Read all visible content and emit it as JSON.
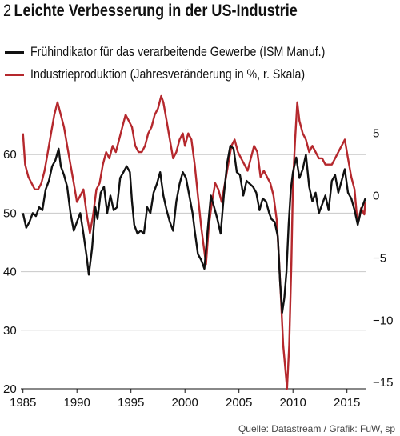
{
  "header": {
    "number": "2",
    "title": "Leichte Verbesserung in der US-Industrie"
  },
  "legend": [
    {
      "label": "Frühindikator für das verarbeitende Gewerbe (ISM Manuf.)",
      "color": "#111111"
    },
    {
      "label": "Industrieproduktion (Jahresveränderung in %, r. Skala)",
      "color": "#b5282d"
    }
  ],
  "source": "Quelle: Datastream / Grafik: FuW, sp",
  "chart_data": {
    "type": "line",
    "x_ticks": [
      "1985",
      "1990",
      "1995",
      "2000",
      "2005",
      "2010",
      "2015"
    ],
    "xlim": [
      1984.8,
      2016.8
    ],
    "y_left": {
      "ticks": [
        "20",
        "30",
        "40",
        "50",
        "60"
      ],
      "lim": [
        20,
        70
      ]
    },
    "y_right": {
      "ticks": [
        "−15",
        "−10",
        "−5",
        "0",
        "5"
      ],
      "lim": [
        -15.5,
        8
      ]
    },
    "grid": "horizontal",
    "series": [
      {
        "name": "Frühindikator für das verarbeitende Gewerbe (ISM Manuf.)",
        "axis": "left",
        "color": "#111111",
        "points": [
          [
            1985.0,
            50.0
          ],
          [
            1985.3,
            47.5
          ],
          [
            1985.6,
            48.5
          ],
          [
            1985.9,
            50.0
          ],
          [
            1986.2,
            49.5
          ],
          [
            1986.5,
            51.0
          ],
          [
            1986.8,
            50.5
          ],
          [
            1987.1,
            54.0
          ],
          [
            1987.4,
            55.5
          ],
          [
            1987.7,
            58.0
          ],
          [
            1988.0,
            59.0
          ],
          [
            1988.3,
            61.0
          ],
          [
            1988.5,
            58.0
          ],
          [
            1988.8,
            56.5
          ],
          [
            1989.1,
            54.5
          ],
          [
            1989.4,
            50.0
          ],
          [
            1989.7,
            47.0
          ],
          [
            1990.0,
            48.5
          ],
          [
            1990.3,
            50.0
          ],
          [
            1990.6,
            46.5
          ],
          [
            1990.9,
            42.5
          ],
          [
            1991.1,
            39.5
          ],
          [
            1991.4,
            44.0
          ],
          [
            1991.7,
            51.0
          ],
          [
            1991.9,
            49.0
          ],
          [
            1992.2,
            53.5
          ],
          [
            1992.5,
            54.5
          ],
          [
            1992.8,
            50.0
          ],
          [
            1993.1,
            53.0
          ],
          [
            1993.4,
            50.5
          ],
          [
            1993.7,
            51.0
          ],
          [
            1994.0,
            56.0
          ],
          [
            1994.3,
            57.0
          ],
          [
            1994.6,
            58.0
          ],
          [
            1994.9,
            57.0
          ],
          [
            1995.1,
            52.0
          ],
          [
            1995.3,
            48.0
          ],
          [
            1995.6,
            46.5
          ],
          [
            1995.9,
            47.0
          ],
          [
            1996.2,
            46.5
          ],
          [
            1996.5,
            51.0
          ],
          [
            1996.8,
            50.0
          ],
          [
            1997.1,
            53.5
          ],
          [
            1997.4,
            55.0
          ],
          [
            1997.7,
            57.0
          ],
          [
            1998.0,
            53.0
          ],
          [
            1998.3,
            50.5
          ],
          [
            1998.6,
            48.5
          ],
          [
            1998.9,
            47.0
          ],
          [
            1999.2,
            52.0
          ],
          [
            1999.5,
            55.0
          ],
          [
            1999.8,
            57.0
          ],
          [
            2000.1,
            56.0
          ],
          [
            2000.4,
            53.0
          ],
          [
            2000.7,
            50.0
          ],
          [
            2000.9,
            47.0
          ],
          [
            2001.2,
            43.0
          ],
          [
            2001.5,
            42.0
          ],
          [
            2001.8,
            40.5
          ],
          [
            2002.1,
            47.0
          ],
          [
            2002.4,
            53.0
          ],
          [
            2002.7,
            51.0
          ],
          [
            2003.0,
            49.0
          ],
          [
            2003.3,
            46.5
          ],
          [
            2003.6,
            53.0
          ],
          [
            2003.9,
            58.5
          ],
          [
            2004.2,
            61.5
          ],
          [
            2004.5,
            61.0
          ],
          [
            2004.8,
            57.0
          ],
          [
            2005.1,
            56.5
          ],
          [
            2005.4,
            53.0
          ],
          [
            2005.7,
            55.5
          ],
          [
            2006.0,
            55.0
          ],
          [
            2006.3,
            54.5
          ],
          [
            2006.6,
            53.5
          ],
          [
            2006.9,
            50.5
          ],
          [
            2007.2,
            52.5
          ],
          [
            2007.5,
            52.0
          ],
          [
            2007.8,
            50.0
          ],
          [
            2008.0,
            49.0
          ],
          [
            2008.3,
            48.5
          ],
          [
            2008.6,
            46.0
          ],
          [
            2008.8,
            38.5
          ],
          [
            2009.0,
            33.0
          ],
          [
            2009.2,
            35.5
          ],
          [
            2009.4,
            40.0
          ],
          [
            2009.6,
            48.0
          ],
          [
            2009.8,
            54.0
          ],
          [
            2010.0,
            57.0
          ],
          [
            2010.3,
            59.5
          ],
          [
            2010.6,
            56.0
          ],
          [
            2010.9,
            57.5
          ],
          [
            2011.2,
            60.0
          ],
          [
            2011.5,
            54.5
          ],
          [
            2011.8,
            52.0
          ],
          [
            2012.1,
            53.5
          ],
          [
            2012.4,
            50.0
          ],
          [
            2012.7,
            51.5
          ],
          [
            2013.0,
            53.0
          ],
          [
            2013.3,
            50.5
          ],
          [
            2013.6,
            55.5
          ],
          [
            2013.9,
            56.5
          ],
          [
            2014.2,
            53.5
          ],
          [
            2014.5,
            55.5
          ],
          [
            2014.8,
            57.5
          ],
          [
            2015.1,
            53.5
          ],
          [
            2015.4,
            52.5
          ],
          [
            2015.7,
            50.5
          ],
          [
            2016.0,
            48.0
          ],
          [
            2016.3,
            50.5
          ],
          [
            2016.5,
            51.5
          ],
          [
            2016.7,
            52.5
          ]
        ]
      },
      {
        "name": "Industrieproduktion (Jahresveränderung in %, r. Skala)",
        "axis": "right",
        "color": "#b5282d",
        "points": [
          [
            1985.0,
            5.0
          ],
          [
            1985.2,
            2.5
          ],
          [
            1985.5,
            1.5
          ],
          [
            1985.8,
            1.0
          ],
          [
            1986.1,
            0.5
          ],
          [
            1986.4,
            0.5
          ],
          [
            1986.7,
            1.0
          ],
          [
            1987.0,
            2.0
          ],
          [
            1987.3,
            3.5
          ],
          [
            1987.6,
            5.0
          ],
          [
            1987.9,
            6.5
          ],
          [
            1988.2,
            7.5
          ],
          [
            1988.5,
            6.5
          ],
          [
            1988.8,
            5.5
          ],
          [
            1989.1,
            4.0
          ],
          [
            1989.4,
            2.5
          ],
          [
            1989.7,
            1.0
          ],
          [
            1990.0,
            -0.5
          ],
          [
            1990.3,
            0.0
          ],
          [
            1990.6,
            0.5
          ],
          [
            1990.9,
            -1.5
          ],
          [
            1991.2,
            -3.0
          ],
          [
            1991.5,
            -1.5
          ],
          [
            1991.8,
            0.5
          ],
          [
            1992.1,
            1.0
          ],
          [
            1992.4,
            2.5
          ],
          [
            1992.7,
            3.5
          ],
          [
            1993.0,
            3.0
          ],
          [
            1993.3,
            4.0
          ],
          [
            1993.6,
            3.5
          ],
          [
            1993.9,
            4.5
          ],
          [
            1994.2,
            5.5
          ],
          [
            1994.5,
            6.5
          ],
          [
            1994.8,
            6.0
          ],
          [
            1995.1,
            5.5
          ],
          [
            1995.4,
            4.0
          ],
          [
            1995.7,
            3.5
          ],
          [
            1996.0,
            3.5
          ],
          [
            1996.3,
            4.0
          ],
          [
            1996.6,
            5.0
          ],
          [
            1996.9,
            5.5
          ],
          [
            1997.2,
            6.5
          ],
          [
            1997.5,
            7.0
          ],
          [
            1997.8,
            8.0
          ],
          [
            1998.0,
            7.5
          ],
          [
            1998.3,
            6.0
          ],
          [
            1998.6,
            4.5
          ],
          [
            1998.9,
            3.0
          ],
          [
            1999.2,
            3.5
          ],
          [
            1999.5,
            4.5
          ],
          [
            1999.8,
            5.0
          ],
          [
            2000.0,
            4.0
          ],
          [
            2000.3,
            5.0
          ],
          [
            2000.6,
            4.5
          ],
          [
            2000.9,
            2.5
          ],
          [
            2001.2,
            0.0
          ],
          [
            2001.5,
            -2.5
          ],
          [
            2001.8,
            -4.5
          ],
          [
            2001.95,
            -5.5
          ],
          [
            2002.2,
            -2.5
          ],
          [
            2002.5,
            -0.5
          ],
          [
            2002.8,
            1.0
          ],
          [
            2003.1,
            0.5
          ],
          [
            2003.4,
            -0.5
          ],
          [
            2003.7,
            1.0
          ],
          [
            2004.0,
            2.5
          ],
          [
            2004.3,
            4.0
          ],
          [
            2004.6,
            4.5
          ],
          [
            2004.9,
            3.5
          ],
          [
            2005.2,
            3.0
          ],
          [
            2005.5,
            2.5
          ],
          [
            2005.8,
            2.0
          ],
          [
            2006.1,
            3.0
          ],
          [
            2006.4,
            4.0
          ],
          [
            2006.7,
            3.5
          ],
          [
            2007.0,
            1.5
          ],
          [
            2007.3,
            2.0
          ],
          [
            2007.6,
            1.5
          ],
          [
            2007.9,
            1.0
          ],
          [
            2008.2,
            0.0
          ],
          [
            2008.5,
            -2.0
          ],
          [
            2008.7,
            -5.0
          ],
          [
            2008.9,
            -8.5
          ],
          [
            2009.1,
            -12.0
          ],
          [
            2009.3,
            -14.0
          ],
          [
            2009.45,
            -15.5
          ],
          [
            2009.65,
            -12.0
          ],
          [
            2009.85,
            -5.5
          ],
          [
            2010.0,
            1.0
          ],
          [
            2010.2,
            4.5
          ],
          [
            2010.4,
            7.5
          ],
          [
            2010.6,
            6.0
          ],
          [
            2010.9,
            5.0
          ],
          [
            2011.2,
            4.5
          ],
          [
            2011.5,
            3.5
          ],
          [
            2011.8,
            4.0
          ],
          [
            2012.1,
            3.5
          ],
          [
            2012.4,
            3.0
          ],
          [
            2012.7,
            3.0
          ],
          [
            2013.0,
            2.5
          ],
          [
            2013.3,
            2.5
          ],
          [
            2013.6,
            2.5
          ],
          [
            2013.9,
            3.0
          ],
          [
            2014.2,
            3.5
          ],
          [
            2014.5,
            4.0
          ],
          [
            2014.8,
            4.5
          ],
          [
            2015.1,
            3.0
          ],
          [
            2015.4,
            1.5
          ],
          [
            2015.7,
            0.5
          ],
          [
            2015.9,
            -1.5
          ],
          [
            2016.1,
            -2.0
          ],
          [
            2016.3,
            -1.0
          ],
          [
            2016.6,
            -1.5
          ],
          [
            2016.7,
            -0.5
          ]
        ]
      }
    ]
  }
}
